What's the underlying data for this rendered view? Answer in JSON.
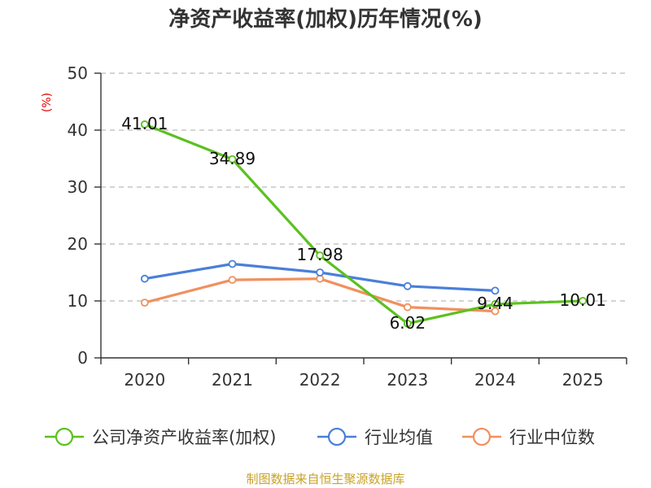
{
  "chart_data": {
    "type": "line",
    "title": "净资产收益率(加权)历年情况(%)",
    "ylabel": "(%)",
    "ylim": [
      0,
      50
    ],
    "yticks": [
      0,
      10,
      20,
      30,
      40,
      50
    ],
    "categories": [
      "2020",
      "2021",
      "2022",
      "2023",
      "2024",
      "2025"
    ],
    "grid": true,
    "legend_position": "bottom",
    "series": [
      {
        "name": "公司净资产收益率(加权)",
        "color": "#5bc11f",
        "values": [
          41.01,
          34.89,
          17.98,
          6.02,
          9.44,
          10.01
        ],
        "labels": [
          "41.01",
          "34.89",
          "17.98",
          "6.02",
          "9.44",
          "10.01"
        ]
      },
      {
        "name": "行业均值",
        "color": "#4a7fd9",
        "values": [
          13.9,
          16.5,
          15.0,
          12.6,
          11.8,
          null
        ]
      },
      {
        "name": "行业中位数",
        "color": "#f0905f",
        "values": [
          9.7,
          13.7,
          13.9,
          8.9,
          8.2,
          null
        ]
      }
    ],
    "source": "制图数据来自恒生聚源数据库"
  }
}
